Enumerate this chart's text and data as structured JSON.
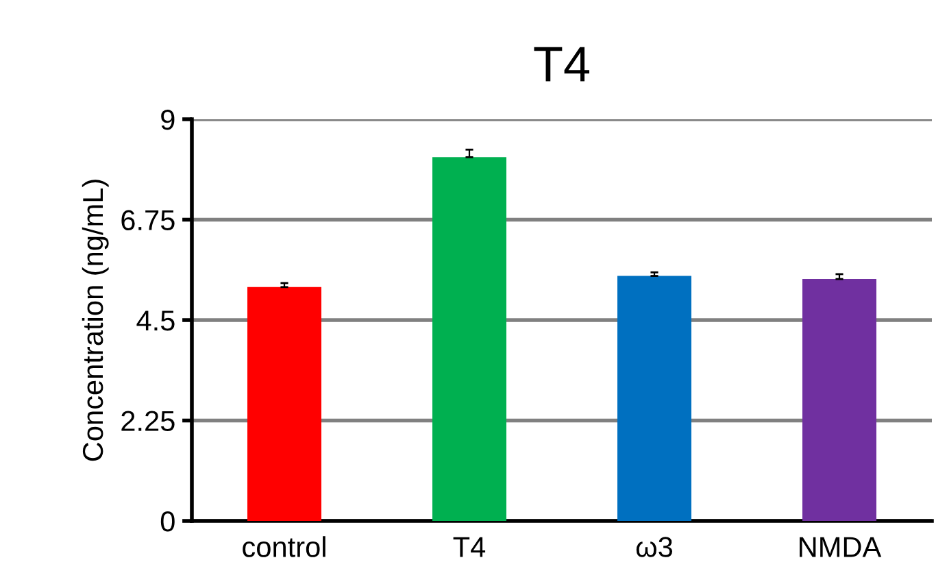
{
  "chart_data": {
    "type": "bar",
    "title": "T4",
    "ylabel": "Concentration (ng/mL)",
    "categories": [
      "control",
      "T4",
      "ω3",
      "NMDA"
    ],
    "values": [
      5.24,
      8.15,
      5.49,
      5.42
    ],
    "errors": [
      0.09,
      0.17,
      0.08,
      0.11
    ],
    "colors": [
      "#ff0000",
      "#00b050",
      "#0070c0",
      "#7030a0"
    ],
    "ylim": [
      0,
      9
    ],
    "yticks": [
      0,
      2.25,
      4.5,
      6.75,
      9
    ],
    "grid": "y"
  }
}
